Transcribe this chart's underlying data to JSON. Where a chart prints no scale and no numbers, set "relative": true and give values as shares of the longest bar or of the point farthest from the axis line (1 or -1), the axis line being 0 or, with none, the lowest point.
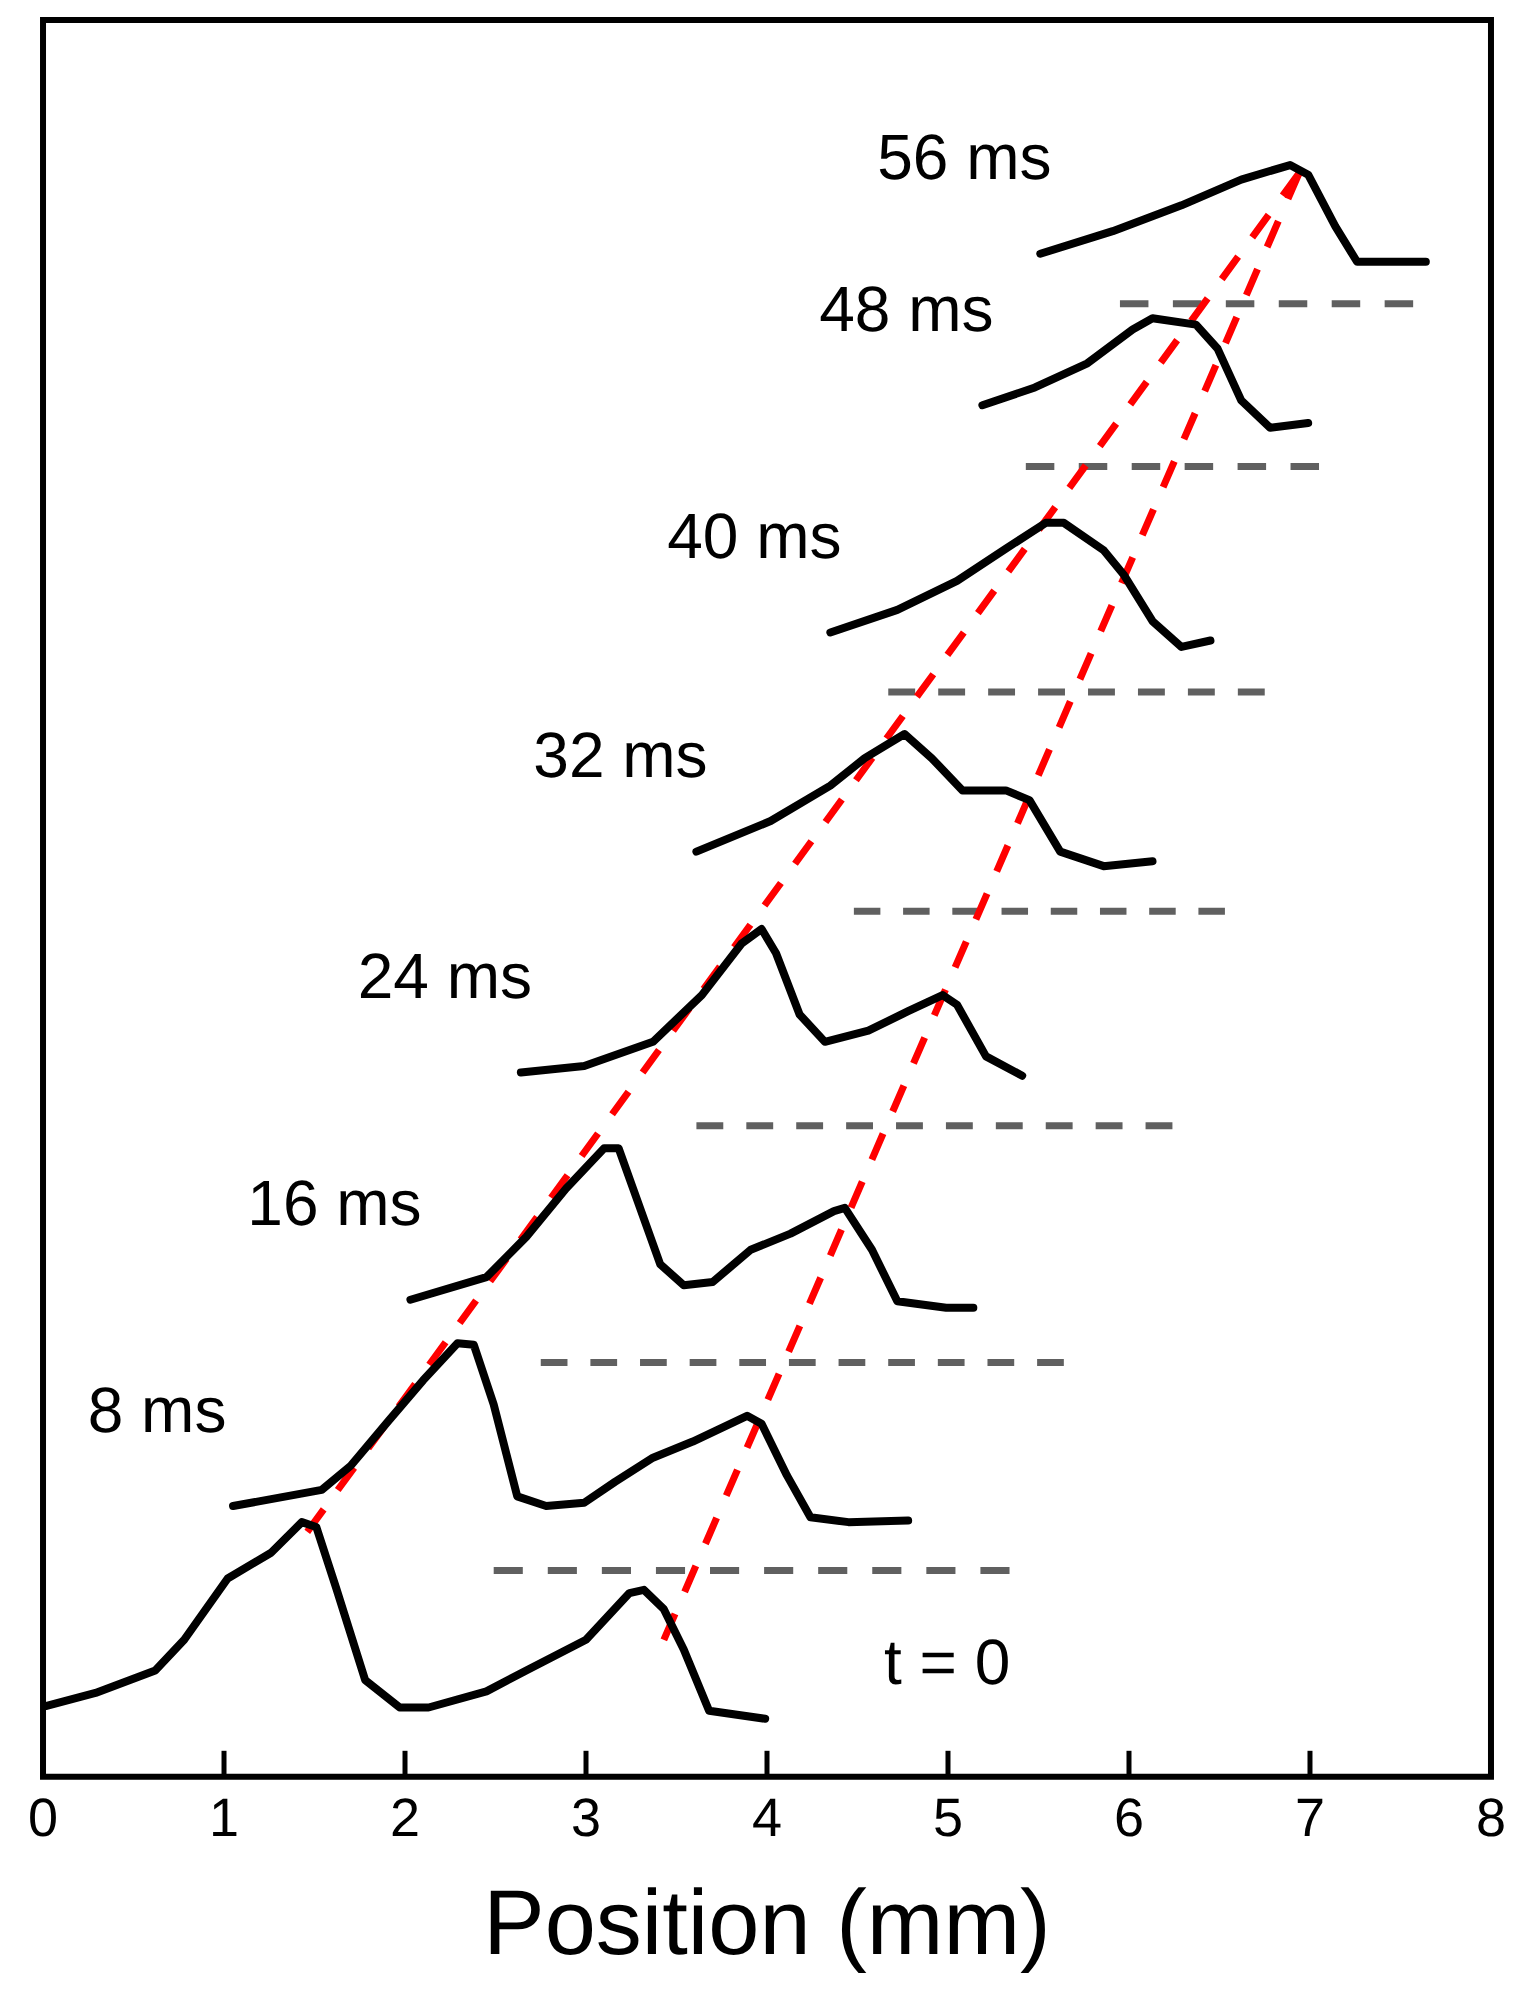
{
  "chart_data": {
    "type": "line",
    "relative": true,
    "xlabel": "Position (mm)",
    "xlim": [
      0,
      8
    ],
    "xticks": [
      0,
      1,
      2,
      3,
      4,
      5,
      6,
      7,
      8
    ],
    "tick_labels": "x",
    "series": [
      {
        "color": "#000000",
        "x": [
          0.02,
          0.29,
          0.62,
          0.78,
          1.02,
          1.26,
          1.43,
          1.51,
          1.62,
          1.78,
          1.97,
          2.13,
          2.45,
          2.67,
          3.0,
          3.24,
          3.32,
          3.43,
          3.54,
          3.68,
          3.99
        ],
        "values": [
          0.044,
          0.052,
          0.066,
          0.085,
          0.123,
          0.139,
          0.158,
          0.155,
          0.117,
          0.06,
          0.043,
          0.043,
          0.053,
          0.066,
          0.085,
          0.114,
          0.116,
          0.104,
          0.079,
          0.041,
          0.036
        ]
      },
      {
        "color": "#000000",
        "x": [
          1.05,
          1.54,
          1.7,
          1.91,
          2.1,
          2.29,
          2.38,
          2.49,
          2.62,
          2.78,
          2.99,
          3.16,
          3.37,
          3.59,
          3.89,
          3.97,
          4.11,
          4.24,
          4.45,
          4.78
        ],
        "values": [
          0.168,
          0.178,
          0.193,
          0.221,
          0.246,
          0.269,
          0.268,
          0.231,
          0.174,
          0.168,
          0.17,
          0.183,
          0.198,
          0.208,
          0.224,
          0.219,
          0.187,
          0.161,
          0.158,
          0.159
        ]
      },
      {
        "color": "#000000",
        "x": [
          2.03,
          2.45,
          2.67,
          2.89,
          3.1,
          3.18,
          3.26,
          3.41,
          3.54,
          3.7,
          3.91,
          4.13,
          4.37,
          4.43,
          4.58,
          4.72,
          4.99,
          5.14
        ],
        "values": [
          0.296,
          0.31,
          0.335,
          0.365,
          0.39,
          0.39,
          0.365,
          0.318,
          0.305,
          0.307,
          0.327,
          0.337,
          0.351,
          0.353,
          0.327,
          0.295,
          0.291,
          0.291
        ]
      },
      {
        "color": "#000000",
        "x": [
          2.64,
          2.99,
          3.37,
          3.64,
          3.86,
          3.97,
          4.05,
          4.18,
          4.32,
          4.56,
          4.78,
          4.97,
          5.05,
          5.21,
          5.41
        ],
        "values": [
          0.437,
          0.441,
          0.456,
          0.485,
          0.517,
          0.526,
          0.511,
          0.473,
          0.456,
          0.463,
          0.475,
          0.485,
          0.479,
          0.447,
          0.435
        ]
      },
      {
        "color": "#000000",
        "x": [
          3.61,
          4.02,
          4.35,
          4.54,
          4.76,
          4.91,
          5.08,
          5.32,
          5.45,
          5.62,
          5.86,
          6.13
        ],
        "values": [
          0.574,
          0.593,
          0.615,
          0.632,
          0.647,
          0.632,
          0.612,
          0.612,
          0.606,
          0.574,
          0.565,
          0.568
        ]
      },
      {
        "color": "#000000",
        "x": [
          4.35,
          4.72,
          5.05,
          5.32,
          5.54,
          5.64,
          5.86,
          5.97,
          6.13,
          6.29,
          6.45
        ],
        "values": [
          0.71,
          0.724,
          0.742,
          0.762,
          0.778,
          0.778,
          0.761,
          0.746,
          0.717,
          0.701,
          0.705
        ]
      },
      {
        "color": "#000000",
        "x": [
          5.19,
          5.48,
          5.77,
          6.02,
          6.13,
          6.37,
          6.49,
          6.62,
          6.78,
          6.99
        ],
        "values": [
          0.851,
          0.862,
          0.877,
          0.898,
          0.905,
          0.901,
          0.886,
          0.854,
          0.837,
          0.84
        ]
      },
      {
        "color": "#000000",
        "x": [
          5.51,
          5.91,
          6.29,
          6.62,
          6.89,
          6.99,
          7.14,
          7.26,
          7.48,
          7.64
        ],
        "values": [
          0.945,
          0.959,
          0.975,
          0.991,
          1.0,
          0.994,
          0.962,
          0.94,
          0.94,
          0.94
        ]
      },
      {
        "color": "#ff0000",
        "line_style": "dashed",
        "x": [
          1.46,
          6.94
        ],
        "values": [
          0.152,
          0.995
        ]
      },
      {
        "color": "#ff0000",
        "line_style": "dashed",
        "x": [
          3.43,
          6.94
        ],
        "values": [
          0.085,
          0.995
        ]
      },
      {
        "color": "#606060",
        "line_style": "dashed",
        "x": [
          2.49,
          5.34
        ],
        "values": [
          0.128,
          0.128
        ]
      },
      {
        "color": "#606060",
        "line_style": "dashed",
        "x": [
          2.75,
          5.64
        ],
        "values": [
          0.257,
          0.257
        ]
      },
      {
        "color": "#606060",
        "line_style": "dashed",
        "x": [
          3.61,
          6.24
        ],
        "values": [
          0.404,
          0.404
        ]
      },
      {
        "color": "#606060",
        "line_style": "dashed",
        "x": [
          4.48,
          6.53
        ],
        "values": [
          0.537,
          0.537
        ]
      },
      {
        "color": "#606060",
        "line_style": "dashed",
        "x": [
          4.67,
          6.75
        ],
        "values": [
          0.673,
          0.673
        ]
      },
      {
        "color": "#606060",
        "line_style": "dashed",
        "x": [
          5.43,
          7.05
        ],
        "values": [
          0.813,
          0.813
        ]
      },
      {
        "color": "#606060",
        "line_style": "dashed",
        "x": [
          5.95,
          7.57
        ],
        "values": [
          0.914,
          0.914
        ]
      }
    ],
    "annotations": [
      "t = 0",
      "8 ms",
      "16 ms",
      "24 ms",
      "32 ms",
      "40 ms",
      "48 ms",
      "56 ms"
    ]
  }
}
